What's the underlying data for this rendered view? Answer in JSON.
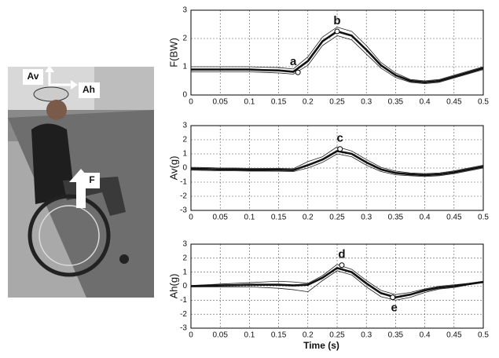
{
  "photo": {
    "labels": [
      "Av",
      "Ah",
      "F"
    ]
  },
  "chart_data": [
    {
      "type": "line",
      "ylabel": "F(BW)",
      "x": [
        0,
        0.025,
        0.05,
        0.075,
        0.1,
        0.125,
        0.15,
        0.175,
        0.2,
        0.225,
        0.25,
        0.275,
        0.3,
        0.325,
        0.35,
        0.375,
        0.4,
        0.425,
        0.45,
        0.475,
        0.5
      ],
      "series": [
        {
          "color": "#222",
          "line_width": 0.8,
          "values": [
            1.0,
            1.0,
            1.0,
            1.0,
            1.0,
            0.98,
            0.97,
            0.92,
            1.35,
            2.05,
            2.4,
            2.25,
            1.75,
            1.15,
            0.78,
            0.55,
            0.5,
            0.55,
            0.7,
            0.85,
            1.0
          ]
        },
        {
          "color": "#222",
          "line_width": 0.8,
          "values": [
            0.82,
            0.82,
            0.82,
            0.82,
            0.82,
            0.8,
            0.78,
            0.74,
            1.05,
            1.75,
            2.1,
            1.95,
            1.45,
            0.95,
            0.62,
            0.45,
            0.4,
            0.45,
            0.6,
            0.75,
            0.9
          ]
        },
        {
          "color": "#111",
          "line_width": 2.6,
          "values": [
            0.9,
            0.9,
            0.9,
            0.9,
            0.9,
            0.88,
            0.87,
            0.82,
            1.2,
            1.9,
            2.25,
            2.1,
            1.6,
            1.05,
            0.7,
            0.5,
            0.45,
            0.5,
            0.65,
            0.8,
            0.95
          ]
        }
      ],
      "annotations": [
        {
          "text": "a",
          "x": 0.183,
          "y": 0.8
        },
        {
          "text": "b",
          "x": 0.25,
          "y": 2.25
        }
      ],
      "xlim": [
        0,
        0.5
      ],
      "xticks": [
        0,
        0.05,
        0.1,
        0.15,
        0.2,
        0.25,
        0.3,
        0.35,
        0.4,
        0.45,
        0.5
      ],
      "ylim": [
        0,
        3
      ],
      "yticks": [
        0,
        1,
        2,
        3
      ],
      "grid": true
    },
    {
      "type": "line",
      "ylabel": "Av(g)",
      "x": [
        0,
        0.025,
        0.05,
        0.075,
        0.1,
        0.125,
        0.15,
        0.175,
        0.2,
        0.225,
        0.25,
        0.275,
        0.3,
        0.325,
        0.35,
        0.375,
        0.4,
        0.425,
        0.45,
        0.475,
        0.5
      ],
      "series": [
        {
          "color": "#222",
          "line_width": 0.8,
          "values": [
            0.05,
            0.03,
            0,
            0,
            -0.02,
            -0.02,
            -0.03,
            -0.05,
            0.45,
            0.8,
            1.5,
            1.2,
            0.6,
            0.05,
            -0.22,
            -0.35,
            -0.4,
            -0.35,
            -0.2,
            0,
            0.2
          ]
        },
        {
          "color": "#222",
          "line_width": 0.8,
          "values": [
            -0.15,
            -0.17,
            -0.2,
            -0.2,
            -0.22,
            -0.22,
            -0.23,
            -0.25,
            0.0,
            0.4,
            1.0,
            0.8,
            0.2,
            -0.25,
            -0.48,
            -0.55,
            -0.6,
            -0.55,
            -0.4,
            -0.2,
            0.0
          ]
        },
        {
          "color": "#111",
          "line_width": 2.6,
          "values": [
            -0.05,
            -0.07,
            -0.1,
            -0.1,
            -0.12,
            -0.12,
            -0.13,
            -0.15,
            0.2,
            0.6,
            1.2,
            1.0,
            0.4,
            -0.1,
            -0.35,
            -0.45,
            -0.5,
            -0.45,
            -0.3,
            -0.1,
            0.1
          ]
        }
      ],
      "annotations": [
        {
          "text": "c",
          "x": 0.255,
          "y": 1.35
        }
      ],
      "xlim": [
        0,
        0.5
      ],
      "xticks": [
        0,
        0.05,
        0.1,
        0.15,
        0.2,
        0.25,
        0.3,
        0.35,
        0.4,
        0.45,
        0.5
      ],
      "ylim": [
        -3,
        3
      ],
      "yticks": [
        -3,
        -2,
        -1,
        0,
        1,
        2,
        3
      ],
      "grid": true
    },
    {
      "type": "line",
      "ylabel": "Ah(g)",
      "xlabel": "Time (s)",
      "x": [
        0,
        0.025,
        0.05,
        0.075,
        0.1,
        0.125,
        0.15,
        0.175,
        0.2,
        0.225,
        0.25,
        0.275,
        0.3,
        0.325,
        0.35,
        0.375,
        0.4,
        0.425,
        0.45,
        0.475,
        0.5
      ],
      "series": [
        {
          "color": "#222",
          "line_width": 0.8,
          "values": [
            0.05,
            0.1,
            0.15,
            0.2,
            0.25,
            0.3,
            0.35,
            0.3,
            0.2,
            0.75,
            1.55,
            1.2,
            0.4,
            -0.3,
            -0.6,
            -0.45,
            -0.2,
            0,
            0.1,
            0.2,
            0.35
          ]
        },
        {
          "color": "#222",
          "line_width": 0.8,
          "values": [
            -0.05,
            -0.05,
            -0.05,
            -0.05,
            -0.05,
            -0.1,
            -0.15,
            -0.25,
            -0.4,
            0.4,
            1.1,
            0.8,
            -0.05,
            -0.75,
            -1.0,
            -0.8,
            -0.45,
            -0.2,
            -0.1,
            0.1,
            0.25
          ]
        },
        {
          "color": "#111",
          "line_width": 2.6,
          "values": [
            0,
            0.02,
            0.05,
            0.07,
            0.1,
            0.1,
            0.1,
            0.05,
            0.1,
            0.6,
            1.3,
            1.0,
            0.2,
            -0.5,
            -0.8,
            -0.6,
            -0.3,
            -0.1,
            0,
            0.15,
            0.3
          ]
        }
      ],
      "annotations": [
        {
          "text": "d",
          "x": 0.258,
          "y": 1.5
        },
        {
          "text": "e",
          "x": 0.345,
          "y": -0.8
        }
      ],
      "xlim": [
        0,
        0.5
      ],
      "xticks": [
        0,
        0.05,
        0.1,
        0.15,
        0.2,
        0.25,
        0.3,
        0.35,
        0.4,
        0.45,
        0.5
      ],
      "ylim": [
        -3,
        3
      ],
      "yticks": [
        -3,
        -2,
        -1,
        0,
        1,
        2,
        3
      ],
      "grid": true
    }
  ]
}
